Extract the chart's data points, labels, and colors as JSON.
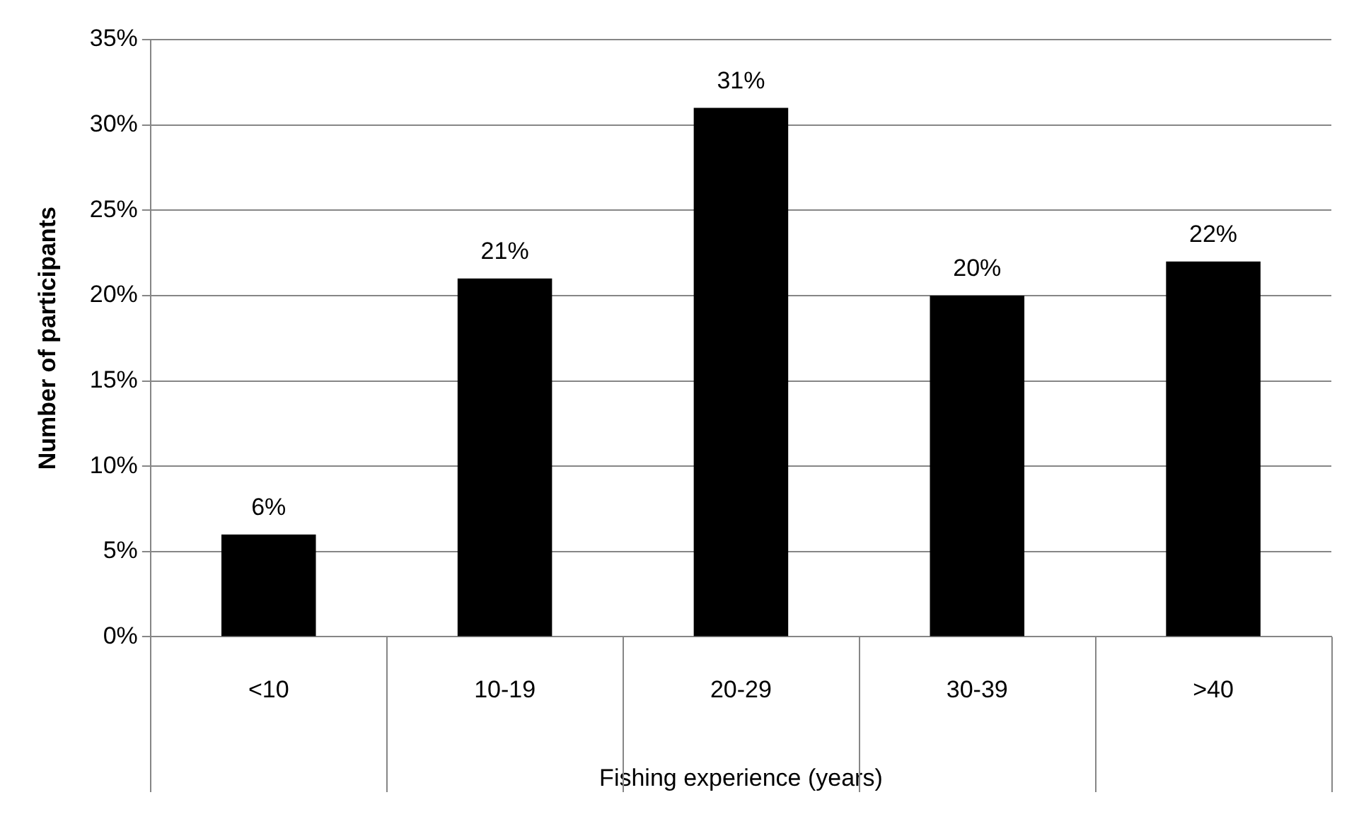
{
  "chart_data": {
    "type": "bar",
    "xlabel": "Fishing experience (years)",
    "ylabel": "Number of participants",
    "categories": [
      "<10",
      "10-19",
      "20-29",
      "30-39",
      ">40"
    ],
    "values": [
      6,
      21,
      31,
      20,
      22
    ],
    "color": "#000000",
    "value_labels": [
      "6%",
      "21%",
      "31%",
      "20%",
      "22%"
    ],
    "ylim": [
      0,
      35
    ],
    "yticks": [
      {
        "value": 0,
        "label": "0%"
      },
      {
        "value": 5,
        "label": "5%"
      },
      {
        "value": 10,
        "label": "10%"
      },
      {
        "value": 15,
        "label": "15%"
      },
      {
        "value": 20,
        "label": "20%"
      },
      {
        "value": 25,
        "label": "25%"
      },
      {
        "value": 30,
        "label": "30%"
      },
      {
        "value": 35,
        "label": "35%"
      }
    ],
    "grid": "y",
    "legend": false
  }
}
